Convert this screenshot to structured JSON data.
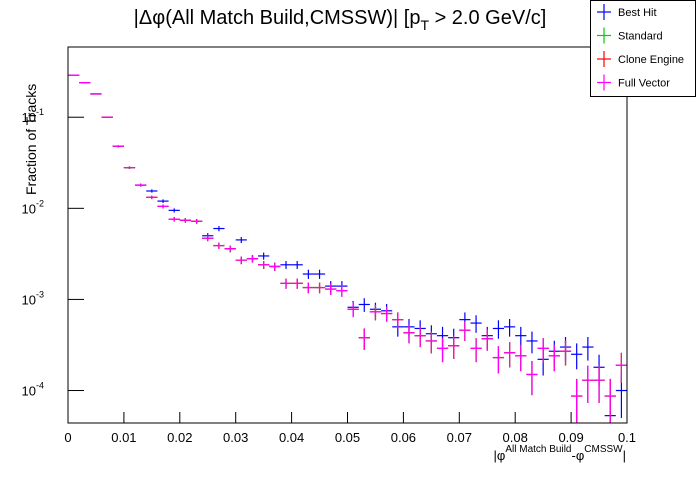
{
  "chart_data": {
    "type": "histogram",
    "title": {
      "main": "|Δφ(All Match Build,CMSSW)| [p",
      "sub": "T",
      "rest": " > 2.0 GeV/c]"
    },
    "y_label": "Fraction of Tracks",
    "x_label": {
      "main": "|φ",
      "sup1": "All Match Build",
      "mid": "-φ",
      "sup2": "CMSSW",
      "end": "|"
    },
    "log_y": true,
    "legend_position": "top-right",
    "xlim": [
      0,
      0.1
    ],
    "ylim": [
      4.4e-05,
      0.59
    ],
    "xticks": [
      0,
      0.01,
      0.02,
      0.03,
      0.04,
      0.05,
      0.06,
      0.07,
      0.08,
      0.09,
      0.1
    ],
    "yticks": [
      {
        "value": 0.0001,
        "label": "10",
        "exponent": "-4"
      },
      {
        "value": 0.001,
        "label": "10",
        "exponent": "-3"
      },
      {
        "value": 0.01,
        "label": "10",
        "exponent": "-2"
      },
      {
        "value": 0.1,
        "label": "10",
        "exponent": "-1"
      }
    ],
    "bins": [
      0,
      0.002,
      0.004,
      0.006,
      0.008,
      0.01,
      0.012,
      0.014,
      0.016,
      0.018,
      0.02,
      0.022,
      0.024,
      0.026,
      0.028,
      0.03,
      0.032,
      0.034,
      0.036,
      0.038,
      0.04,
      0.042,
      0.044,
      0.046,
      0.048,
      0.05,
      0.052,
      0.054,
      0.056,
      0.058,
      0.06,
      0.062,
      0.064,
      0.066,
      0.068,
      0.07,
      0.072,
      0.074,
      0.076,
      0.078,
      0.08,
      0.082,
      0.084,
      0.086,
      0.088,
      0.09,
      0.092,
      0.094,
      0.096,
      0.098,
      0.1
    ],
    "series": [
      {
        "name": "Best Hit",
        "color": "#0000ff",
        "values": [
          0.29,
          0.24,
          0.18,
          0.1,
          0.048,
          0.028,
          0.018,
          0.0155,
          0.012,
          0.0095,
          0.0074,
          0.0072,
          0.005,
          0.006,
          0.0036,
          0.0045,
          0.0028,
          0.003,
          0.0023,
          0.0024,
          0.0024,
          0.0019,
          0.0019,
          0.0014,
          0.0014,
          0.00082,
          0.00088,
          0.00078,
          0.00075,
          0.0005,
          0.0005,
          0.00048,
          0.00042,
          0.0004,
          0.00038,
          0.0006,
          0.00055,
          0.0004,
          0.00048,
          0.0005,
          0.0004,
          0.00035,
          0.00022,
          0.00027,
          0.0003,
          0.00025,
          0.0003,
          0.00018,
          5.3e-05,
          0.0001
        ],
        "errors": [
          0.0027,
          0.0024,
          0.0021,
          0.0016,
          0.0011,
          0.00084,
          0.00067,
          0.00062,
          0.00055,
          0.00049,
          0.00043,
          0.00042,
          0.00035,
          0.00039,
          0.0003,
          0.00034,
          0.00026,
          0.00027,
          0.00024,
          0.00024,
          0.00024,
          0.00022,
          0.00022,
          0.00019,
          0.00019,
          0.00014,
          0.00015,
          0.00014,
          0.00014,
          0.00011,
          0.00011,
          0.00011,
          0.0001,
          0.0001,
          9.7e-05,
          0.00012,
          0.00012,
          0.0001,
          0.00011,
          0.00011,
          0.0001,
          9.4e-05,
          7.4e-05,
          8.2e-05,
          8.7e-05,
          7.9e-05,
          8.7e-05,
          6.7e-05,
          3.6e-05,
          5e-05
        ]
      },
      {
        "name": "Standard",
        "color": "#00cc00",
        "values": [
          0.29,
          0.24,
          0.18,
          0.1,
          0.048,
          0.028,
          0.018,
          0.0132,
          0.0105,
          0.0076,
          0.0074,
          0.0072,
          0.0047,
          0.0039,
          0.0036,
          0.0027,
          0.0028,
          0.0024,
          0.0023,
          0.0015,
          0.0015,
          0.00135,
          0.00135,
          0.0013,
          0.00125,
          0.00078,
          0.00038,
          0.00073,
          0.0007,
          0.0006,
          0.00043,
          0.0004,
          0.00035,
          0.00029,
          0.00031,
          0.00046,
          0.00029,
          0.00037,
          0.00023,
          0.00026,
          0.00024,
          0.00015,
          0.00029,
          0.00024,
          0.00027,
          8.7e-05,
          0.00013,
          0.00013,
          8.7e-05,
          0.00019
        ],
        "errors": [
          0.0027,
          0.0024,
          0.0021,
          0.0016,
          0.0011,
          0.00084,
          0.00067,
          0.00057,
          0.00051,
          0.00044,
          0.00043,
          0.00042,
          0.00034,
          0.00031,
          0.0003,
          0.00026,
          0.00026,
          0.00024,
          0.00024,
          0.00019,
          0.00019,
          0.00018,
          0.00018,
          0.00018,
          0.00018,
          0.00014,
          0.0001,
          0.00014,
          0.00013,
          0.00012,
          0.0001,
          0.0001,
          9.4e-05,
          8.5e-05,
          8.8e-05,
          0.00011,
          8.5e-05,
          9.6e-05,
          7.6e-05,
          8.1e-05,
          7.7e-05,
          6.1e-05,
          8.5e-05,
          7.7e-05,
          8.2e-05,
          4.7e-05,
          5.7e-05,
          5.7e-05,
          4.7e-05,
          6.9e-05
        ]
      },
      {
        "name": "Clone Engine",
        "color": "#ff0000",
        "values": [
          0.29,
          0.24,
          0.18,
          0.1,
          0.048,
          0.028,
          0.018,
          0.0132,
          0.0105,
          0.0076,
          0.0074,
          0.0072,
          0.0047,
          0.0039,
          0.0036,
          0.0027,
          0.0028,
          0.0024,
          0.0023,
          0.0015,
          0.0015,
          0.00135,
          0.00135,
          0.0013,
          0.00125,
          0.00078,
          0.00038,
          0.00073,
          0.0007,
          0.0006,
          0.00043,
          0.0004,
          0.00035,
          0.00029,
          0.00031,
          0.00046,
          0.00029,
          0.00037,
          0.00023,
          0.00026,
          0.00024,
          0.00015,
          0.00029,
          0.00024,
          0.00027,
          8.7e-05,
          0.00013,
          0.00013,
          8.7e-05,
          0.00019
        ],
        "errors": [
          0.0027,
          0.0024,
          0.0021,
          0.0016,
          0.0011,
          0.00084,
          0.00067,
          0.00057,
          0.00051,
          0.00044,
          0.00043,
          0.00042,
          0.00034,
          0.00031,
          0.0003,
          0.00026,
          0.00026,
          0.00024,
          0.00024,
          0.00019,
          0.00019,
          0.00018,
          0.00018,
          0.00018,
          0.00018,
          0.00014,
          0.0001,
          0.00014,
          0.00013,
          0.00012,
          0.0001,
          0.0001,
          9.4e-05,
          8.5e-05,
          8.8e-05,
          0.00011,
          8.5e-05,
          9.6e-05,
          7.6e-05,
          8.1e-05,
          7.7e-05,
          6.1e-05,
          8.5e-05,
          7.7e-05,
          8.2e-05,
          4.7e-05,
          5.7e-05,
          5.7e-05,
          4.7e-05,
          6.9e-05
        ]
      },
      {
        "name": "Full Vector",
        "color": "#ff00ff",
        "values": [
          0.29,
          0.24,
          0.18,
          0.1,
          0.048,
          0.028,
          0.018,
          0.0132,
          0.0105,
          0.0076,
          0.0074,
          0.0072,
          0.0047,
          0.0039,
          0.0036,
          0.0027,
          0.0028,
          0.0024,
          0.0023,
          0.0015,
          0.0015,
          0.00135,
          0.00135,
          0.0013,
          0.00125,
          0.00078,
          0.00038,
          0.00073,
          0.0007,
          0.0006,
          0.00043,
          0.0004,
          0.00035,
          0.00029,
          0.00031,
          0.00046,
          0.00029,
          0.00037,
          0.00023,
          0.00026,
          0.00024,
          0.00015,
          0.00029,
          0.00024,
          0.00027,
          8.7e-05,
          0.00013,
          0.00013,
          8.7e-05,
          0.00019
        ],
        "errors": [
          0.0027,
          0.0024,
          0.0021,
          0.0016,
          0.0011,
          0.00084,
          0.00067,
          0.00057,
          0.00051,
          0.00044,
          0.00043,
          0.00042,
          0.00034,
          0.00031,
          0.0003,
          0.00026,
          0.00026,
          0.00024,
          0.00024,
          0.00019,
          0.00019,
          0.00018,
          0.00018,
          0.00018,
          0.00018,
          0.00014,
          0.0001,
          0.00014,
          0.00013,
          0.00012,
          0.0001,
          0.0001,
          9.4e-05,
          8.5e-05,
          8.8e-05,
          0.00011,
          8.5e-05,
          9.6e-05,
          7.6e-05,
          8.1e-05,
          7.7e-05,
          6.1e-05,
          8.5e-05,
          7.7e-05,
          8.2e-05,
          4.7e-05,
          5.7e-05,
          5.7e-05,
          4.7e-05,
          6.9e-05
        ]
      }
    ]
  }
}
